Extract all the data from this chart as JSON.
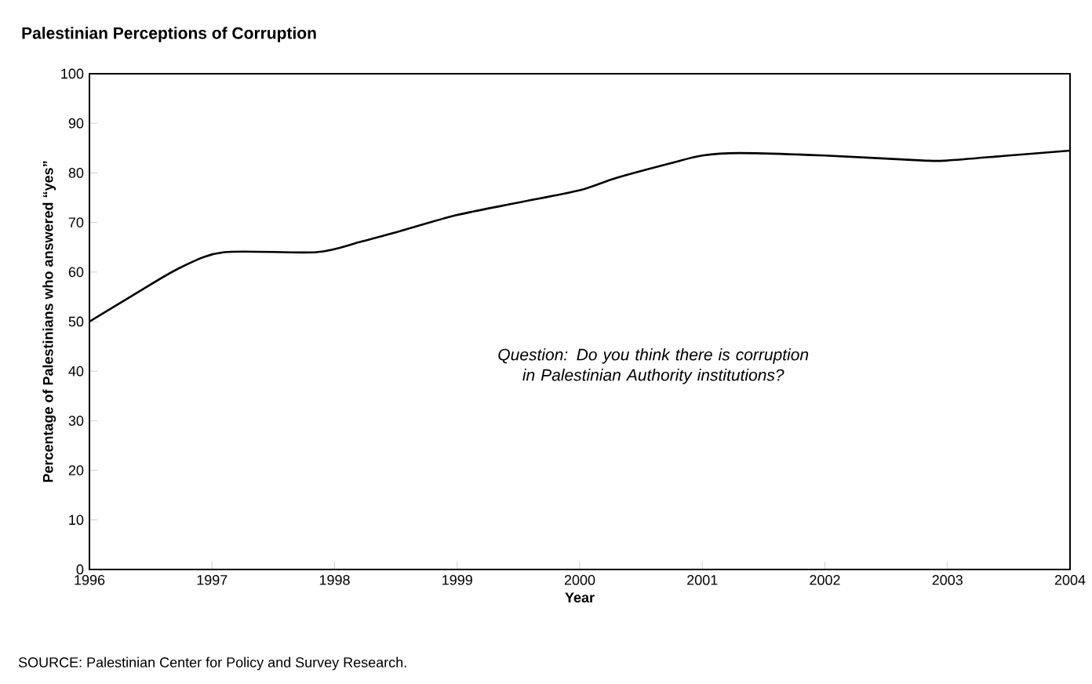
{
  "chart_data": {
    "type": "line",
    "title": "Palestinian Perceptions of Corruption",
    "xlabel": "Year",
    "ylabel": "Percentage of Palestinians who answered “yes”",
    "annotations": [
      "Question: *Do you think there is corruption in Palestinian Authority institutions?*",
      "SOURCE: Palestinian Center for Policy and Survey Research."
    ],
    "series": [
      {
        "color": "#000000",
        "x": [
          1996.0,
          1996.4,
          1996.75,
          1997.1,
          1997.85,
          1998.2,
          1998.5,
          1999.0,
          1999.5,
          2000.0,
          2000.3,
          2000.75,
          2001.0,
          2001.3,
          2002.0,
          2002.8,
          2003.0,
          2003.5,
          2004.0
        ],
        "values": [
          50,
          56,
          61,
          64,
          64,
          66,
          68,
          71.5,
          74,
          76.5,
          79,
          82,
          83.5,
          84,
          83.5,
          82.5,
          82.5,
          83.5,
          84.5
        ]
      }
    ],
    "xlim": [
      1996,
      2004
    ],
    "ylim": [
      0,
      100
    ],
    "xticks": [
      1996,
      1997,
      1998,
      1999,
      2000,
      2001,
      2002,
      2003,
      2004
    ],
    "yticks": [
      0,
      10,
      20,
      30,
      40,
      50,
      60,
      70,
      80,
      90,
      100
    ],
    "grid": false,
    "legend": false,
    "marker": "none",
    "line_style": "solid"
  }
}
